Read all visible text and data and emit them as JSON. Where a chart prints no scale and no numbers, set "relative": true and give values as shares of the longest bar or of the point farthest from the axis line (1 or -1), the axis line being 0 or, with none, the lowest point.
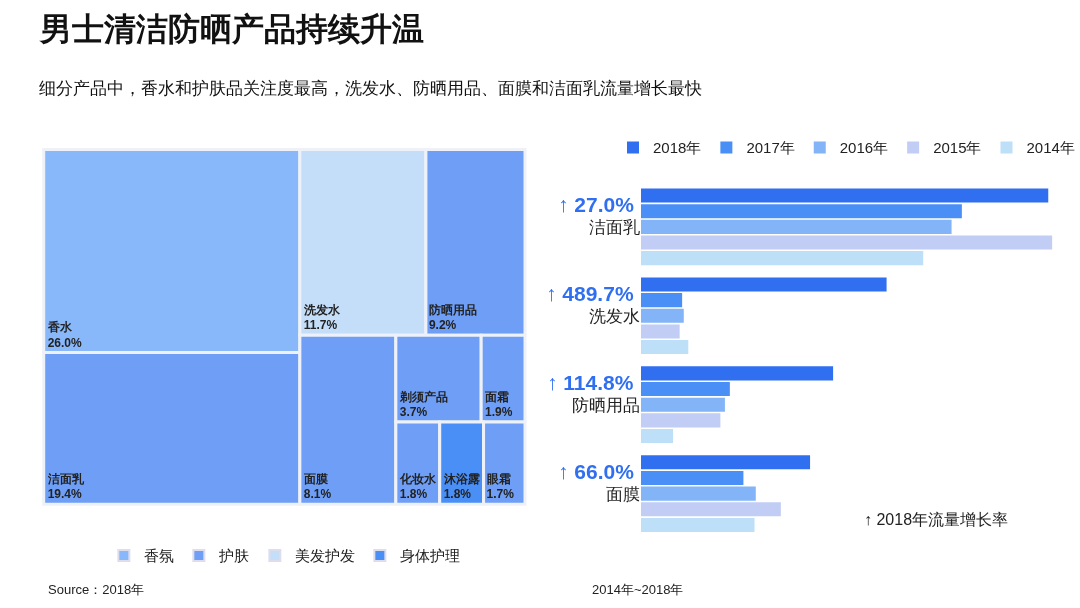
{
  "chart_data": [
    {
      "type": "other",
      "title": "男士清洁防晒产品持续升温",
      "subtitle": "细分产品中，香水和护肤品关注度最高，洗发水、防晒用品、面膜和洁面乳流量增长最快",
      "categories": [
        "香水",
        "洁面乳",
        "防晒用品",
        "面膜",
        "剃须产品",
        "面霜",
        "化妆水",
        "眼霜",
        "洗发水",
        "沐浴露"
      ],
      "series": [
        {
          "name": "香氛",
          "color": "#88b7fa",
          "values": [
            26.0,
            null,
            null,
            null,
            null,
            null,
            null,
            null,
            null,
            null
          ],
          "value_labels": [
            "26.0%",
            null,
            null,
            null,
            null,
            null,
            null,
            null,
            null,
            null
          ]
        },
        {
          "name": "护肤",
          "color": "#6e9ef5",
          "values": [
            null,
            19.4,
            9.2,
            8.1,
            3.7,
            1.9,
            1.8,
            1.7,
            null,
            null
          ],
          "value_labels": [
            null,
            "19.4%",
            "9.2%",
            "8.1%",
            "3.7%",
            "1.9%",
            "1.8%",
            "1.7%",
            null,
            null
          ]
        },
        {
          "name": "美发护发",
          "color": "#c4ddf8",
          "values": [
            null,
            null,
            null,
            null,
            null,
            null,
            null,
            null,
            11.7,
            null
          ],
          "value_labels": [
            null,
            null,
            null,
            null,
            null,
            null,
            null,
            null,
            "11.7%",
            null
          ]
        },
        {
          "name": "身体护理",
          "color": "#4a8ff5",
          "values": [
            null,
            null,
            null,
            null,
            null,
            null,
            null,
            null,
            null,
            1.8
          ],
          "value_labels": [
            null,
            null,
            null,
            null,
            null,
            null,
            null,
            null,
            null,
            "1.8%"
          ]
        }
      ],
      "legend": "bottom",
      "annotations": [
        "Source：2018年"
      ]
    },
    {
      "type": "bar",
      "orientation": "horizontal",
      "relative": true,
      "categories": [
        "洁面乳",
        "洗发水",
        "防晒用品",
        "面膜"
      ],
      "series": [
        {
          "name": "2018年",
          "color": "#2f6ff0",
          "values": [
            0.99,
            0.597,
            0.467,
            0.411
          ]
        },
        {
          "name": "2017年",
          "color": "#4a8ff5",
          "values": [
            0.78,
            0.1,
            0.216,
            0.249
          ]
        },
        {
          "name": "2016年",
          "color": "#82b4f7",
          "values": [
            0.755,
            0.104,
            0.204,
            0.279
          ]
        },
        {
          "name": "2015年",
          "color": "#c2cdf6",
          "values": [
            1.0,
            0.094,
            0.193,
            0.34
          ]
        },
        {
          "name": "2014年",
          "color": "#bde0f8",
          "values": [
            0.686,
            0.115,
            0.078,
            0.276
          ]
        }
      ],
      "legend": "top",
      "annotations": [
        "↑ 27.0%",
        "↑ 489.7%",
        "↑ 114.8%",
        "↑ 66.0%",
        "↑ 2018年流量增长率",
        "2014年~2018年"
      ]
    }
  ]
}
